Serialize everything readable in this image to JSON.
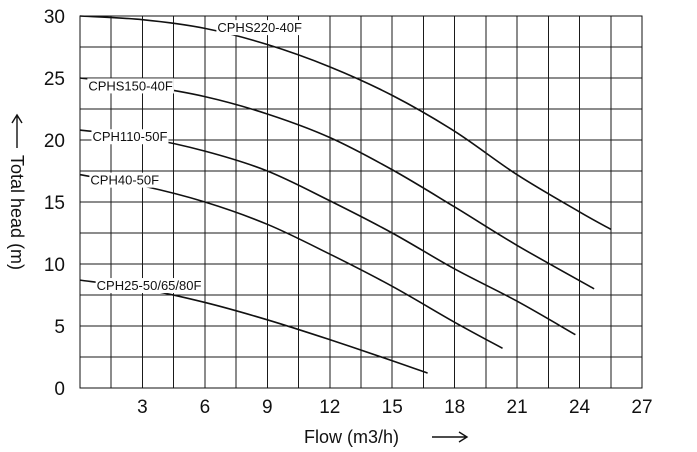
{
  "chart_data": {
    "type": "line",
    "title": "",
    "xlabel": "Flow (m3/h)",
    "ylabel": "Total head (m)",
    "xlim": [
      0,
      27
    ],
    "ylim": [
      0,
      30
    ],
    "x_ticks": [
      3,
      6,
      9,
      12,
      15,
      18,
      21,
      24,
      27
    ],
    "y_ticks": [
      0,
      5,
      10,
      15,
      20,
      25,
      30
    ],
    "x_tick_labels": [
      "3",
      "6",
      "9",
      "12",
      "15",
      "18",
      "21",
      "24",
      "27"
    ],
    "y_tick_labels": [
      "0",
      "5",
      "10",
      "15",
      "20",
      "25",
      "30"
    ],
    "grid": true,
    "grid_x_step": 1.5,
    "grid_y_step": 2.5,
    "legend": "none",
    "series": [
      {
        "name": "CPHS220-40F",
        "x": [
          0,
          3,
          6,
          9,
          12,
          15,
          18,
          21,
          24,
          25.5
        ],
        "y": [
          30,
          29.7,
          29,
          27.7,
          25.9,
          23.6,
          20.7,
          17.2,
          14.2,
          12.8
        ]
      },
      {
        "name": "CPHS150-40F",
        "x": [
          0,
          3,
          6,
          9,
          12,
          15,
          18,
          21,
          24.7
        ],
        "y": [
          25,
          24.4,
          23.5,
          22.1,
          20.2,
          17.6,
          14.6,
          11.5,
          8.0
        ]
      },
      {
        "name": "CPH110-50F",
        "x": [
          0,
          3,
          6,
          9,
          12,
          15,
          18,
          21,
          23.8
        ],
        "y": [
          20.8,
          20.2,
          19.1,
          17.5,
          15.1,
          12.5,
          9.6,
          7.0,
          4.3
        ]
      },
      {
        "name": "CPH40-50F",
        "x": [
          0,
          3,
          6,
          9,
          12,
          15,
          18,
          20.3
        ],
        "y": [
          17.2,
          16.3,
          15.0,
          13.2,
          10.8,
          8.2,
          5.3,
          3.2
        ]
      },
      {
        "name": "CPH25-50/65/80F",
        "x": [
          0,
          3,
          6,
          9,
          12,
          15,
          16.7
        ],
        "y": [
          8.7,
          8.0,
          6.9,
          5.5,
          3.9,
          2.2,
          1.2
        ]
      }
    ]
  }
}
